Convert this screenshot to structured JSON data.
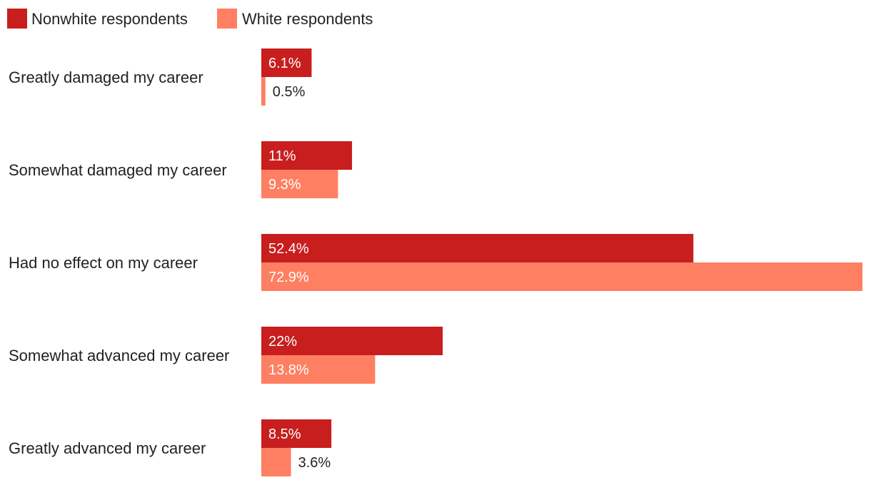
{
  "chart_data": {
    "type": "bar",
    "orientation": "horizontal",
    "categories": [
      "Greatly damaged my career",
      "Somewhat damaged my career",
      "Had no effect on my career",
      "Somewhat advanced my career",
      "Greatly advanced my career"
    ],
    "series": [
      {
        "name": "Nonwhite respondents",
        "color": "#c81e1e",
        "values": [
          6.1,
          11,
          52.4,
          22,
          8.5
        ],
        "labels": [
          "6.1%",
          "11%",
          "52.4%",
          "22%",
          "8.5%"
        ]
      },
      {
        "name": "White respondents",
        "color": "#ff7f62",
        "values": [
          0.5,
          9.3,
          72.9,
          13.8,
          3.6
        ],
        "labels": [
          "0.5%",
          "9.3%",
          "72.9%",
          "13.8%",
          "3.6%"
        ]
      }
    ],
    "title": "",
    "xlabel": "",
    "ylabel": "",
    "xlim": [
      0,
      72.9
    ],
    "grid": false,
    "legend": "top-left"
  }
}
